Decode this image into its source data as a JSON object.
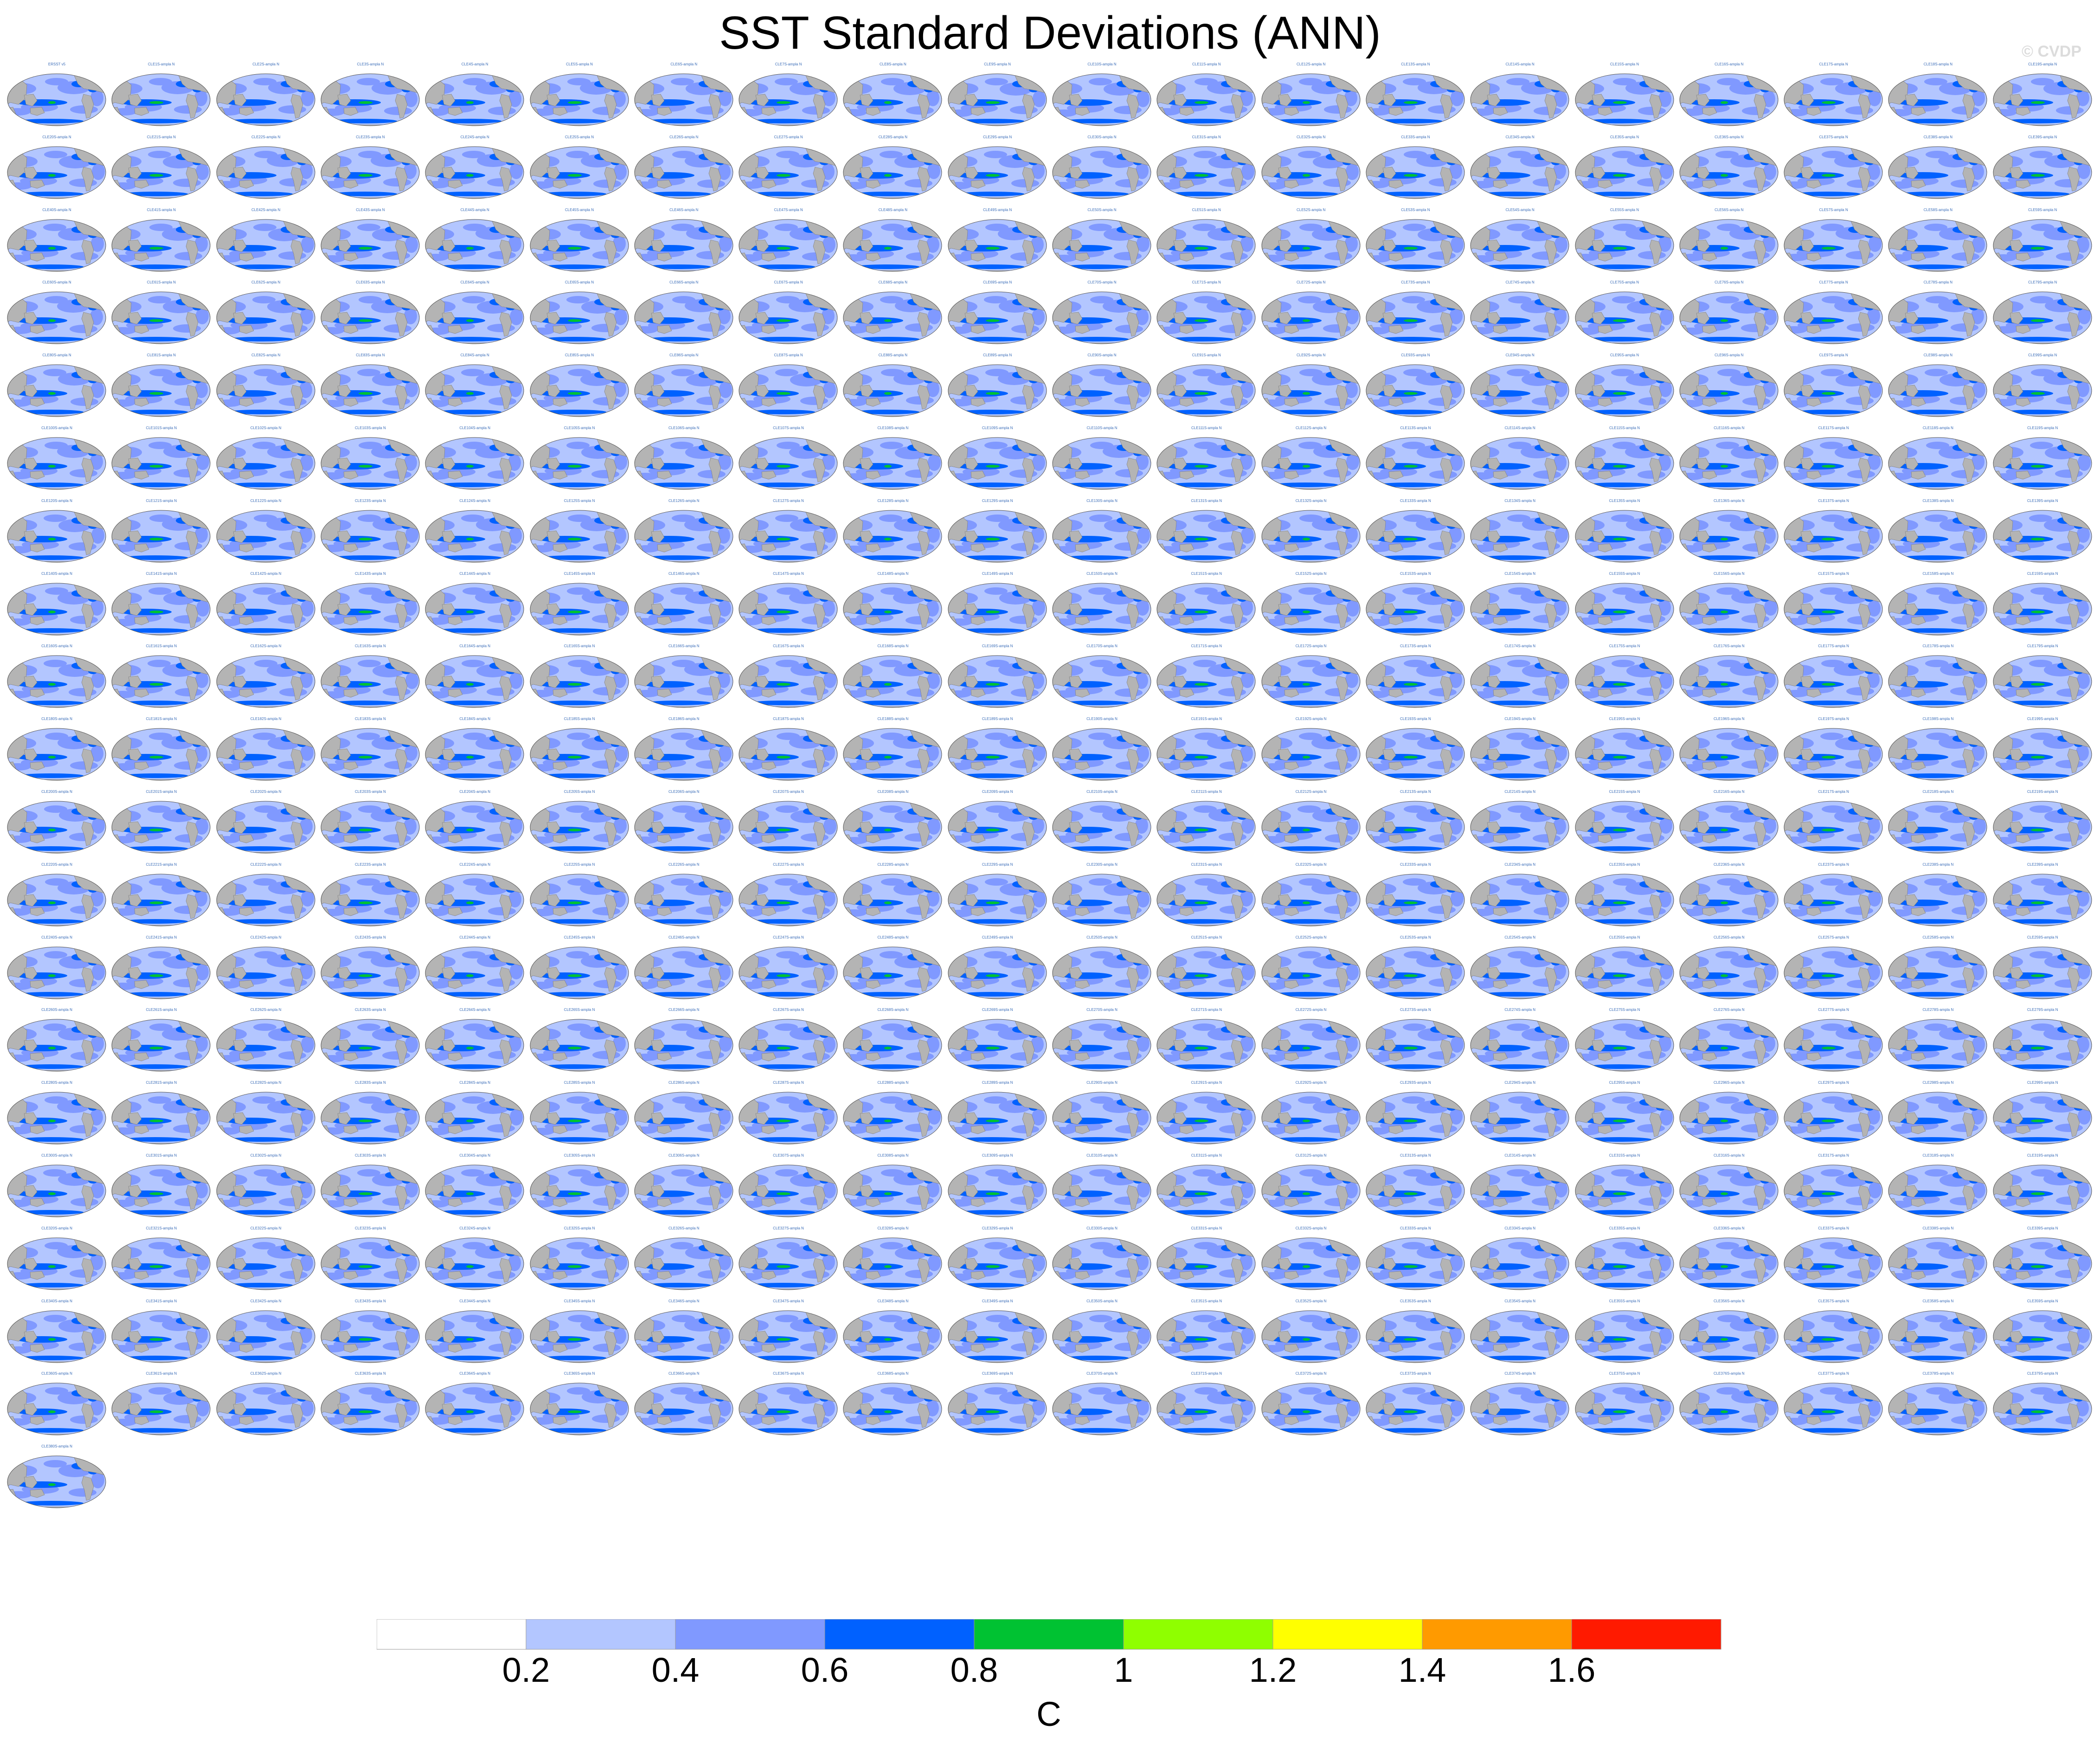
{
  "figure": {
    "title": "SST Standard Deviations (ANN)",
    "watermark": "© CVDP"
  },
  "chart_data": {
    "type": "heatmap",
    "description_kind": "small-multiples of global maps",
    "title": "SST Standard Deviations (ANN)",
    "panel_count": 381,
    "panel_rows": 20,
    "panel_columns": 20,
    "first_panel_title": "ERSST v5",
    "panel_title_pattern": "CLENS-ampla N",
    "colorbar": {
      "label": "C",
      "tick_labels": [
        "0.2",
        "0.4",
        "0.6",
        "0.8",
        "1",
        "1.2",
        "1.4",
        "1.6"
      ],
      "levels": [
        0.2,
        0.4,
        0.6,
        0.8,
        1.0,
        1.2,
        1.4,
        1.6
      ],
      "colors": [
        "#ffffff",
        "#b3c6ff",
        "#8099ff",
        "#0061ff",
        "#00c232",
        "#8fff00",
        "#ffff00",
        "#ff9a00",
        "#ff1a00"
      ]
    },
    "map_colors": {
      "land": "#b4b4b4",
      "ocean_low": "#b3c6ff",
      "ocean_mid": "#8099ff",
      "ocean_high": "#0061ff",
      "ocean_peak": "#00c232"
    }
  }
}
